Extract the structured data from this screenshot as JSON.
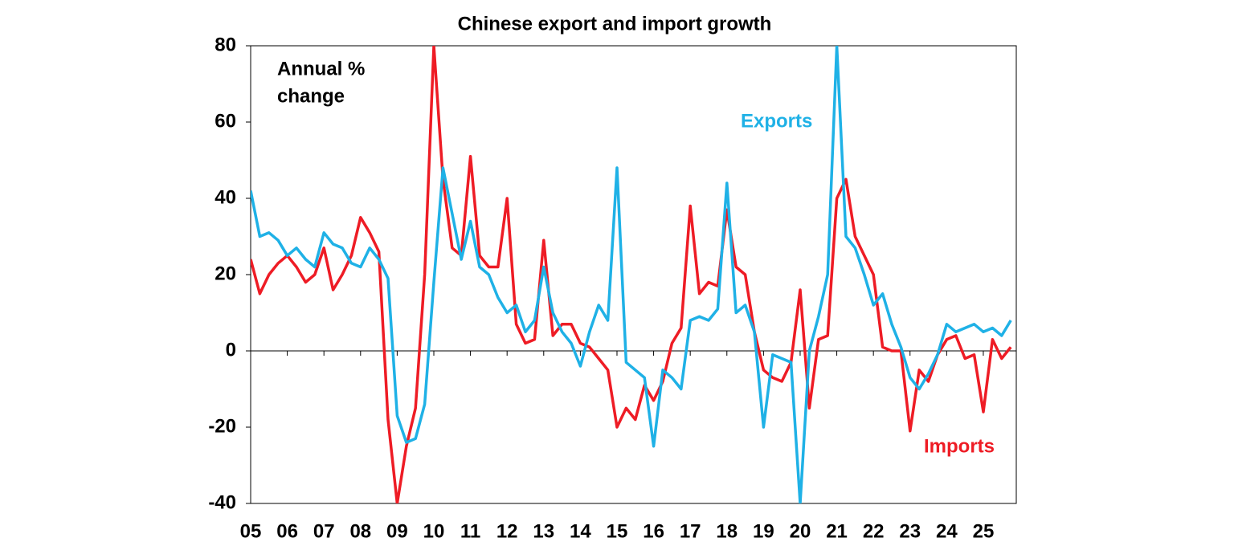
{
  "chart_data": {
    "type": "line",
    "title": "Chinese export and import growth",
    "annotation": [
      "Annual %",
      "change"
    ],
    "x": [
      2005,
      2005.25,
      2005.5,
      2005.75,
      2006,
      2006.25,
      2006.5,
      2006.75,
      2007,
      2007.25,
      2007.5,
      2007.75,
      2008,
      2008.25,
      2008.5,
      2008.75,
      2009,
      2009.25,
      2009.5,
      2009.75,
      2010,
      2010.25,
      2010.5,
      2010.75,
      2011,
      2011.25,
      2011.5,
      2011.75,
      2012,
      2012.25,
      2012.5,
      2012.75,
      2013,
      2013.25,
      2013.5,
      2013.75,
      2014,
      2014.25,
      2014.5,
      2014.75,
      2015,
      2015.25,
      2015.5,
      2015.75,
      2016,
      2016.25,
      2016.5,
      2016.75,
      2017,
      2017.25,
      2017.5,
      2017.75,
      2018,
      2018.25,
      2018.5,
      2018.75,
      2019,
      2019.25,
      2019.5,
      2019.75,
      2020,
      2020.25,
      2020.5,
      2020.75,
      2021,
      2021.25,
      2021.5,
      2021.75,
      2022,
      2022.25,
      2022.5,
      2022.75,
      2023,
      2023.25,
      2023.5,
      2023.75,
      2024,
      2024.25,
      2024.5,
      2024.75,
      2025,
      2025.25,
      2025.5,
      2025.75
    ],
    "series": [
      {
        "name": "Exports",
        "color": "#1fb1e6",
        "values": [
          42,
          30,
          31,
          29,
          25,
          27,
          24,
          22,
          31,
          28,
          27,
          23,
          22,
          27,
          24,
          19,
          -17,
          -24,
          -23,
          -14,
          18,
          48,
          36,
          24,
          34,
          22,
          20,
          14,
          10,
          12,
          5,
          8,
          22,
          10,
          5,
          2,
          -4,
          5,
          12,
          8,
          48,
          -3,
          -5,
          -7,
          -25,
          -5,
          -7,
          -10,
          8,
          9,
          8,
          11,
          44,
          10,
          12,
          5,
          -20,
          -1,
          -2,
          -3,
          -40,
          0,
          9,
          20,
          80,
          30,
          27,
          20,
          12,
          15,
          7,
          1,
          -7,
          -10,
          -6,
          -1,
          7,
          5,
          6,
          7,
          5,
          6,
          4,
          8
        ]
      },
      {
        "name": "Imports",
        "color": "#ee1c25",
        "values": [
          24,
          15,
          20,
          23,
          25,
          22,
          18,
          20,
          27,
          16,
          20,
          25,
          35,
          31,
          26,
          -18,
          -40,
          -25,
          -15,
          20,
          80,
          45,
          27,
          25,
          51,
          25,
          22,
          22,
          40,
          7,
          2,
          3,
          29,
          4,
          7,
          7,
          2,
          1,
          -2,
          -5,
          -20,
          -15,
          -18,
          -9,
          -13,
          -8,
          2,
          6,
          38,
          15,
          18,
          17,
          37,
          22,
          20,
          5,
          -5,
          -7,
          -8,
          -3,
          16,
          -15,
          3,
          4,
          40,
          45,
          30,
          25,
          20,
          1,
          0,
          0,
          -21,
          -5,
          -8,
          -1,
          3,
          4,
          -2,
          -1,
          -16,
          3,
          -2,
          1
        ]
      }
    ],
    "xlim": [
      2005,
      2025.9
    ],
    "xticks": [
      {
        "value": 2005,
        "label": "05"
      },
      {
        "value": 2006,
        "label": "06"
      },
      {
        "value": 2007,
        "label": "07"
      },
      {
        "value": 2008,
        "label": "08"
      },
      {
        "value": 2009,
        "label": "09"
      },
      {
        "value": 2010,
        "label": "10"
      },
      {
        "value": 2011,
        "label": "11"
      },
      {
        "value": 2012,
        "label": "12"
      },
      {
        "value": 2013,
        "label": "13"
      },
      {
        "value": 2014,
        "label": "14"
      },
      {
        "value": 2015,
        "label": "15"
      },
      {
        "value": 2016,
        "label": "16"
      },
      {
        "value": 2017,
        "label": "17"
      },
      {
        "value": 2018,
        "label": "18"
      },
      {
        "value": 2019,
        "label": "19"
      },
      {
        "value": 2020,
        "label": "20"
      },
      {
        "value": 2021,
        "label": "21"
      },
      {
        "value": 2022,
        "label": "22"
      },
      {
        "value": 2023,
        "label": "23"
      },
      {
        "value": 2024,
        "label": "24"
      },
      {
        "value": 2025,
        "label": "25"
      }
    ],
    "ylim": [
      -40,
      80
    ],
    "yticks": [
      -40,
      -20,
      0,
      20,
      40,
      60,
      80
    ],
    "grid": false
  }
}
